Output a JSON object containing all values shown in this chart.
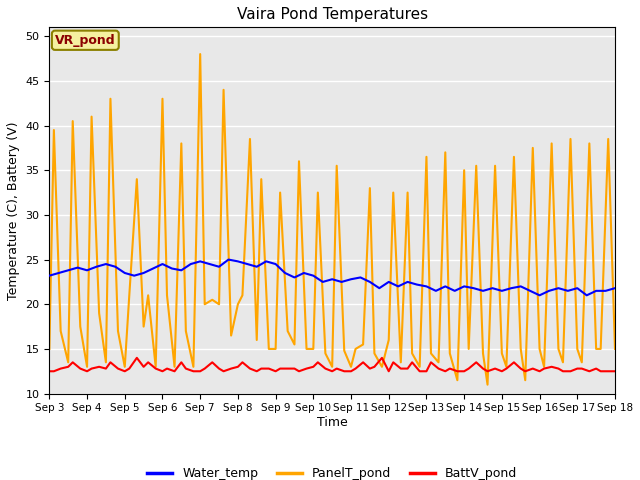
{
  "title": "Vaira Pond Temperatures",
  "xlabel": "Time",
  "ylabel": "Temperature (C), Battery (V)",
  "ylim": [
    10,
    51
  ],
  "annotation_text": "VR_pond",
  "bg_color": "#e8e8e8",
  "legend_entries": [
    "Water_temp",
    "PanelT_pond",
    "BattV_pond"
  ],
  "legend_colors": [
    "blue",
    "orange",
    "red"
  ],
  "xtick_labels": [
    "Sep 3",
    "Sep 4",
    "Sep 5",
    "Sep 6",
    "Sep 7",
    "Sep 8",
    "Sep 9",
    "Sep 10",
    "Sep 11",
    "Sep 12",
    "Sep 13",
    "Sep 14",
    "Sep 15",
    "Sep 16",
    "Sep 17",
    "Sep 18"
  ],
  "water_temp_x": [
    0.0,
    0.25,
    0.5,
    0.75,
    1.0,
    1.25,
    1.5,
    1.75,
    2.0,
    2.25,
    2.5,
    2.75,
    3.0,
    3.25,
    3.5,
    3.75,
    4.0,
    4.25,
    4.5,
    4.75,
    5.0,
    5.25,
    5.5,
    5.75,
    6.0,
    6.25,
    6.5,
    6.75,
    7.0,
    7.25,
    7.5,
    7.75,
    8.0,
    8.25,
    8.5,
    8.75,
    9.0,
    9.25,
    9.5,
    9.75,
    10.0,
    10.25,
    10.5,
    10.75,
    11.0,
    11.25,
    11.5,
    11.75,
    12.0,
    12.25,
    12.5,
    12.75,
    13.0,
    13.25,
    13.5,
    13.75,
    14.0,
    14.25,
    14.5,
    14.75,
    15.0
  ],
  "water_temp_y": [
    23.2,
    23.5,
    23.8,
    24.1,
    23.8,
    24.2,
    24.5,
    24.2,
    23.5,
    23.2,
    23.5,
    24.0,
    24.5,
    24.0,
    23.8,
    24.5,
    24.8,
    24.5,
    24.2,
    25.0,
    24.8,
    24.5,
    24.2,
    24.8,
    24.5,
    23.5,
    23.0,
    23.5,
    23.2,
    22.5,
    22.8,
    22.5,
    22.8,
    23.0,
    22.5,
    21.8,
    22.5,
    22.0,
    22.5,
    22.2,
    22.0,
    21.5,
    22.0,
    21.5,
    22.0,
    21.8,
    21.5,
    21.8,
    21.5,
    21.8,
    22.0,
    21.5,
    21.0,
    21.5,
    21.8,
    21.5,
    21.8,
    21.0,
    21.5,
    21.5,
    21.8
  ],
  "panel_temp_x": [
    0,
    0.12,
    0.3,
    0.5,
    0.62,
    0.82,
    1.0,
    1.12,
    1.32,
    1.5,
    1.62,
    1.82,
    2.0,
    2.12,
    2.32,
    2.5,
    2.62,
    2.82,
    3.0,
    3.12,
    3.32,
    3.5,
    3.62,
    3.82,
    4.0,
    4.12,
    4.32,
    4.5,
    4.62,
    4.82,
    5.0,
    5.12,
    5.32,
    5.5,
    5.62,
    5.82,
    6.0,
    6.12,
    6.32,
    6.5,
    6.62,
    6.82,
    7.0,
    7.12,
    7.32,
    7.5,
    7.62,
    7.82,
    8.0,
    8.12,
    8.32,
    8.5,
    8.62,
    8.82,
    9.0,
    9.12,
    9.32,
    9.5,
    9.62,
    9.82,
    10.0,
    10.12,
    10.32,
    10.5,
    10.62,
    10.82,
    11.0,
    11.12,
    11.32,
    11.5,
    11.62,
    11.82,
    12.0,
    12.12,
    12.32,
    12.5,
    12.62,
    12.82,
    13.0,
    13.12,
    13.32,
    13.5,
    13.62,
    13.82,
    14.0,
    14.12,
    14.32,
    14.5,
    14.62,
    14.82,
    15.0
  ],
  "panel_temp_y": [
    15.0,
    39.5,
    17.0,
    13.5,
    40.5,
    17.5,
    13.0,
    41.0,
    19.0,
    13.5,
    43.0,
    17.0,
    13.0,
    21.0,
    34.0,
    17.5,
    21.0,
    13.0,
    43.0,
    21.0,
    13.0,
    38.0,
    17.0,
    13.0,
    48.0,
    20.0,
    20.5,
    20.0,
    44.0,
    16.5,
    20.0,
    21.0,
    38.5,
    16.0,
    34.0,
    15.0,
    15.0,
    32.5,
    17.0,
    15.5,
    36.0,
    15.0,
    15.0,
    32.5,
    14.5,
    13.0,
    35.5,
    14.8,
    13.0,
    15.0,
    15.5,
    33.0,
    14.5,
    13.0,
    16.0,
    32.5,
    13.5,
    32.5,
    14.5,
    13.0,
    36.5,
    14.5,
    13.5,
    37.0,
    14.5,
    11.5,
    35.0,
    15.0,
    35.5,
    14.5,
    11.0,
    35.5,
    14.5,
    13.0,
    36.5,
    15.0,
    11.5,
    37.5,
    15.0,
    13.0,
    38.0,
    15.0,
    13.5,
    38.5,
    15.0,
    13.5,
    38.0,
    15.0,
    15.0,
    38.5,
    15.0
  ],
  "batt_temp_x": [
    0,
    0.12,
    0.3,
    0.5,
    0.62,
    0.82,
    1.0,
    1.12,
    1.32,
    1.5,
    1.62,
    1.82,
    2.0,
    2.12,
    2.32,
    2.5,
    2.62,
    2.82,
    3.0,
    3.12,
    3.32,
    3.5,
    3.62,
    3.82,
    4.0,
    4.12,
    4.32,
    4.5,
    4.62,
    4.82,
    5.0,
    5.12,
    5.32,
    5.5,
    5.62,
    5.82,
    6.0,
    6.12,
    6.32,
    6.5,
    6.62,
    6.82,
    7.0,
    7.12,
    7.32,
    7.5,
    7.62,
    7.82,
    8.0,
    8.12,
    8.32,
    8.5,
    8.62,
    8.82,
    9.0,
    9.12,
    9.32,
    9.5,
    9.62,
    9.82,
    10.0,
    10.12,
    10.32,
    10.5,
    10.62,
    10.82,
    11.0,
    11.12,
    11.32,
    11.5,
    11.62,
    11.82,
    12.0,
    12.12,
    12.32,
    12.5,
    12.62,
    12.82,
    13.0,
    13.12,
    13.32,
    13.5,
    13.62,
    13.82,
    14.0,
    14.12,
    14.32,
    14.5,
    14.62,
    14.82,
    15.0
  ],
  "batt_temp_y": [
    12.5,
    12.5,
    12.8,
    13.0,
    13.5,
    12.8,
    12.5,
    12.8,
    13.0,
    12.8,
    13.5,
    12.8,
    12.5,
    12.8,
    14.0,
    13.0,
    13.5,
    12.8,
    12.5,
    12.8,
    12.5,
    13.5,
    12.8,
    12.5,
    12.5,
    12.8,
    13.5,
    12.8,
    12.5,
    12.8,
    13.0,
    13.5,
    12.8,
    12.5,
    12.8,
    12.8,
    12.5,
    12.8,
    12.8,
    12.8,
    12.5,
    12.8,
    13.0,
    13.5,
    12.8,
    12.5,
    12.8,
    12.5,
    12.5,
    12.8,
    13.5,
    12.8,
    13.0,
    14.0,
    12.5,
    13.5,
    12.8,
    12.8,
    13.5,
    12.5,
    12.5,
    13.5,
    12.8,
    12.5,
    12.8,
    12.5,
    12.5,
    12.8,
    13.5,
    12.8,
    12.5,
    12.8,
    12.5,
    12.8,
    13.5,
    12.8,
    12.5,
    12.8,
    12.5,
    12.8,
    13.0,
    12.8,
    12.5,
    12.5,
    12.8,
    12.8,
    12.5,
    12.8,
    12.5,
    12.5,
    12.5
  ]
}
